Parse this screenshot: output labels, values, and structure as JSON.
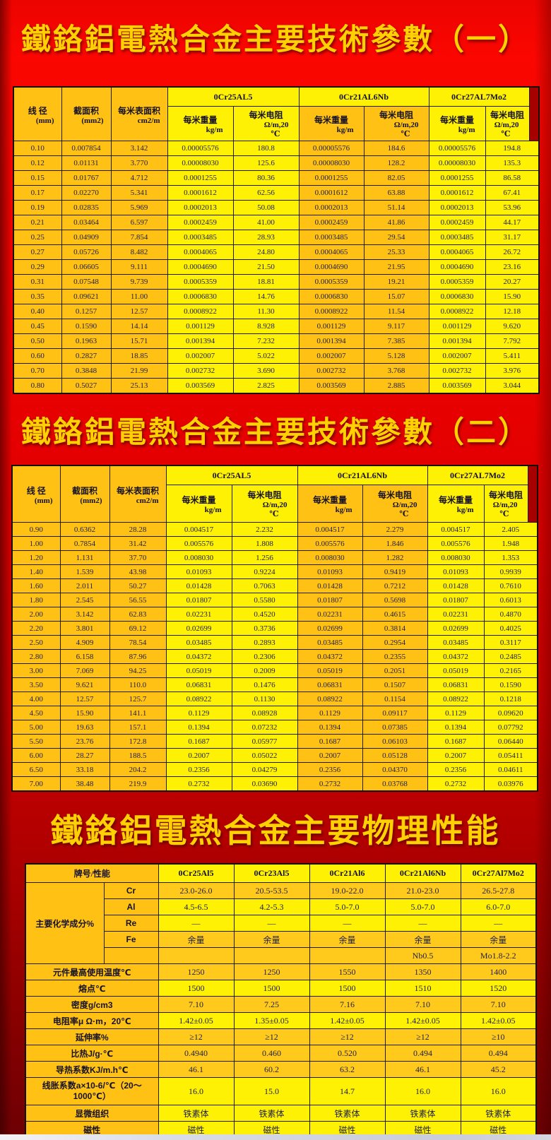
{
  "titles": {
    "table1": "鐵鉻鋁電熱合金主要技術參數（一）",
    "table2": "鐵鉻鋁電熱合金主要技術參數（二）",
    "physical": "鐵鉻鋁電熱合金主要物理性能"
  },
  "param_header": {
    "diameter_label": "线 径",
    "diameter_unit": "(mm)",
    "area_label": "截面积",
    "area_unit": "(mm2)",
    "surface_label": "每米表面积",
    "surface_unit": "cm2/m",
    "alloys": [
      "0Cr25AL5",
      "0Cr21AL6Nb",
      "0Cr27AL7Mo2"
    ],
    "weight_label": "每米重量",
    "weight_unit": "kg/m",
    "resistance_label": "每米电阻",
    "resistance_unit": "Ω/m,20",
    "resistance_unit2": "℃"
  },
  "param_table_1": {
    "rows": [
      [
        "0.10",
        "0.007854",
        "3.142",
        "0.00005576",
        "180.8",
        "0.00005576",
        "184.6",
        "0.00005576",
        "194.8"
      ],
      [
        "0.12",
        "0.01131",
        "3.770",
        "0.00008030",
        "125.6",
        "0.00008030",
        "128.2",
        "0.00008030",
        "135.3"
      ],
      [
        "0.15",
        "0.01767",
        "4.712",
        "0.0001255",
        "80.36",
        "0.0001255",
        "82.05",
        "0.0001255",
        "86.58"
      ],
      [
        "0.17",
        "0.02270",
        "5.341",
        "0.0001612",
        "62.56",
        "0.0001612",
        "63.88",
        "0.0001612",
        "67.41"
      ],
      [
        "0.19",
        "0.02835",
        "5.969",
        "0.0002013",
        "50.08",
        "0.0002013",
        "51.14",
        "0.0002013",
        "53.96"
      ],
      [
        "0.21",
        "0.03464",
        "6.597",
        "0.0002459",
        "41.00",
        "0.0002459",
        "41.86",
        "0.0002459",
        "44.17"
      ],
      [
        "0.25",
        "0.04909",
        "7.854",
        "0.0003485",
        "28.93",
        "0.0003485",
        "29.54",
        "0.0003485",
        "31.17"
      ],
      [
        "0.27",
        "0.05726",
        "8.482",
        "0.0004065",
        "24.80",
        "0.0004065",
        "25.33",
        "0.0004065",
        "26.72"
      ],
      [
        "0.29",
        "0.06605",
        "9.111",
        "0.0004690",
        "21.50",
        "0.0004690",
        "21.95",
        "0.0004690",
        "23.16"
      ],
      [
        "0.31",
        "0.07548",
        "9.739",
        "0.0005359",
        "18.81",
        "0.0005359",
        "19.21",
        "0.0005359",
        "20.27"
      ],
      [
        "0.35",
        "0.09621",
        "11.00",
        "0.0006830",
        "14.76",
        "0.0006830",
        "15.07",
        "0.0006830",
        "15.90"
      ],
      [
        "0.40",
        "0.1257",
        "12.57",
        "0.0008922",
        "11.30",
        "0.0008922",
        "11.54",
        "0.0008922",
        "12.18"
      ],
      [
        "0.45",
        "0.1590",
        "14.14",
        "0.001129",
        "8.928",
        "0.001129",
        "9.117",
        "0.001129",
        "9.620"
      ],
      [
        "0.50",
        "0.1963",
        "15.71",
        "0.001394",
        "7.232",
        "0.001394",
        "7.385",
        "0.001394",
        "7.792"
      ],
      [
        "0.60",
        "0.2827",
        "18.85",
        "0.002007",
        "5.022",
        "0.002007",
        "5.128",
        "0.002007",
        "5.411"
      ],
      [
        "0.70",
        "0.3848",
        "21.99",
        "0.002732",
        "3.690",
        "0.002732",
        "3.768",
        "0.002732",
        "3.976"
      ],
      [
        "0.80",
        "0.5027",
        "25.13",
        "0.003569",
        "2.825",
        "0.003569",
        "2.885",
        "0.003569",
        "3.044"
      ]
    ]
  },
  "param_table_2": {
    "rows": [
      [
        "0.90",
        "0.6362",
        "28.28",
        "0.004517",
        "2.232",
        "0.004517",
        "2.279",
        "0.004517",
        "2.405"
      ],
      [
        "1.00",
        "0.7854",
        "31.42",
        "0.005576",
        "1.808",
        "0.005576",
        "1.846",
        "0.005576",
        "1.948"
      ],
      [
        "1.20",
        "1.131",
        "37.70",
        "0.008030",
        "1.256",
        "0.008030",
        "1.282",
        "0.008030",
        "1.353"
      ],
      [
        "1.40",
        "1.539",
        "43.98",
        "0.01093",
        "0.9224",
        "0.01093",
        "0.9419",
        "0.01093",
        "0.9939"
      ],
      [
        "1.60",
        "2.011",
        "50.27",
        "0.01428",
        "0.7063",
        "0.01428",
        "0.7212",
        "0.01428",
        "0.7610"
      ],
      [
        "1.80",
        "2.545",
        "56.55",
        "0.01807",
        "0.5580",
        "0.01807",
        "0.5698",
        "0.01807",
        "0.6013"
      ],
      [
        "2.00",
        "3.142",
        "62.83",
        "0.02231",
        "0.4520",
        "0.02231",
        "0.4615",
        "0.02231",
        "0.4870"
      ],
      [
        "2.20",
        "3.801",
        "69.12",
        "0.02699",
        "0.3736",
        "0.02699",
        "0.3814",
        "0.02699",
        "0.4025"
      ],
      [
        "2.50",
        "4.909",
        "78.54",
        "0.03485",
        "0.2893",
        "0.03485",
        "0.2954",
        "0.03485",
        "0.3117"
      ],
      [
        "2.80",
        "6.158",
        "87.96",
        "0.04372",
        "0.2306",
        "0.04372",
        "0.2355",
        "0.04372",
        "0.2485"
      ],
      [
        "3.00",
        "7.069",
        "94.25",
        "0.05019",
        "0.2009",
        "0.05019",
        "0.2051",
        "0.05019",
        "0.2165"
      ],
      [
        "3.50",
        "9.621",
        "110.0",
        "0.06831",
        "0.1476",
        "0.06831",
        "0.1507",
        "0.06831",
        "0.1590"
      ],
      [
        "4.00",
        "12.57",
        "125.7",
        "0.08922",
        "0.1130",
        "0.08922",
        "0.1154",
        "0.08922",
        "0.1218"
      ],
      [
        "4.50",
        "15.90",
        "141.1",
        "0.1129",
        "0.08928",
        "0.1129",
        "0.09117",
        "0.1129",
        "0.09620"
      ],
      [
        "5.00",
        "19.63",
        "157.1",
        "0.1394",
        "0.07232",
        "0.1394",
        "0.07385",
        "0.1394",
        "0.07792"
      ],
      [
        "5.50",
        "23.76",
        "172.8",
        "0.1687",
        "0.05977",
        "0.1687",
        "0.06103",
        "0.1687",
        "0.06440"
      ],
      [
        "6.00",
        "28.27",
        "188.5",
        "0.2007",
        "0.05022",
        "0.2007",
        "0.05128",
        "0.2007",
        "0.05411"
      ],
      [
        "6.50",
        "33.18",
        "204.2",
        "0.2356",
        "0.04279",
        "0.2356",
        "0.04370",
        "0.2356",
        "0.04611"
      ],
      [
        "7.00",
        "38.48",
        "219.9",
        "0.2732",
        "0.03690",
        "0.2732",
        "0.03768",
        "0.2732",
        "0.03976"
      ]
    ]
  },
  "physical_table": {
    "corner_label": "牌号/性能",
    "brands": [
      "0Cr25Al5",
      "0Cr23Al5",
      "0Cr21Al6",
      "0Cr21Al6Nb",
      "0Cr27Al7Mo2"
    ],
    "chem_group_label": "主要化学成分%",
    "chem_rows": [
      {
        "element": "Cr",
        "values": [
          "23.0-26.0",
          "20.5-53.5",
          "19.0-22.0",
          "21.0-23.0",
          "26.5-27.8"
        ]
      },
      {
        "element": "Al",
        "values": [
          "4.5-6.5",
          "4.2-5.3",
          "5.0-7.0",
          "5.0-7.0",
          "6.0-7.0"
        ]
      },
      {
        "element": "Re",
        "values": [
          "—",
          "—",
          "—",
          "—",
          "—"
        ]
      },
      {
        "element": "Fe",
        "values": [
          "余量",
          "余量",
          "余量",
          "余量",
          "余量"
        ]
      },
      {
        "element": "",
        "values": [
          "",
          "",
          "",
          "Nb0.5",
          "Mo1.8-2.2"
        ]
      }
    ],
    "property_rows": [
      {
        "label": "元件最高使用温度℃",
        "values": [
          "1250",
          "1250",
          "1550",
          "1350",
          "1400"
        ]
      },
      {
        "label": "熔点℃",
        "values": [
          "1500",
          "1500",
          "1500",
          "1510",
          "1520"
        ]
      },
      {
        "label": "密度g/cm3",
        "values": [
          "7.10",
          "7.25",
          "7.16",
          "7.10",
          "7.10"
        ]
      },
      {
        "label": "电阻率μ Ω·m，20℃",
        "values": [
          "1.42±0.05",
          "1.35±0.05",
          "1.42±0.05",
          "1.42±0.05",
          "1.42±0.05"
        ]
      },
      {
        "label": "延伸率%",
        "values": [
          "≥12",
          "≥12",
          "≥12",
          "≥12",
          "≥10"
        ]
      },
      {
        "label": "比热J/g·℃",
        "values": [
          "0.4940",
          "0.460",
          "0.520",
          "0.494",
          "0.494"
        ]
      },
      {
        "label": "导热系数KJ/m.h℃",
        "values": [
          "46.1",
          "60.2",
          "63.2",
          "46.1",
          "45.2"
        ]
      },
      {
        "label": "线胀系数a×10-6/℃（20～1000℃）",
        "values": [
          "16.0",
          "15.0",
          "14.7",
          "16.0",
          "16.0"
        ]
      },
      {
        "label": "显微组织",
        "values": [
          "铁素体",
          "铁素体",
          "铁素体",
          "铁素体",
          "铁素体"
        ]
      },
      {
        "label": "磁性",
        "values": [
          "磁性",
          "磁性",
          "磁性",
          "磁性",
          "磁性"
        ]
      }
    ]
  },
  "colors": {
    "background_red": "#e60000",
    "cell_yellow": "#fef104",
    "cell_orange": "#ffc113",
    "title_gold": "#ffd103",
    "corner_dark_red": "#a60000"
  }
}
